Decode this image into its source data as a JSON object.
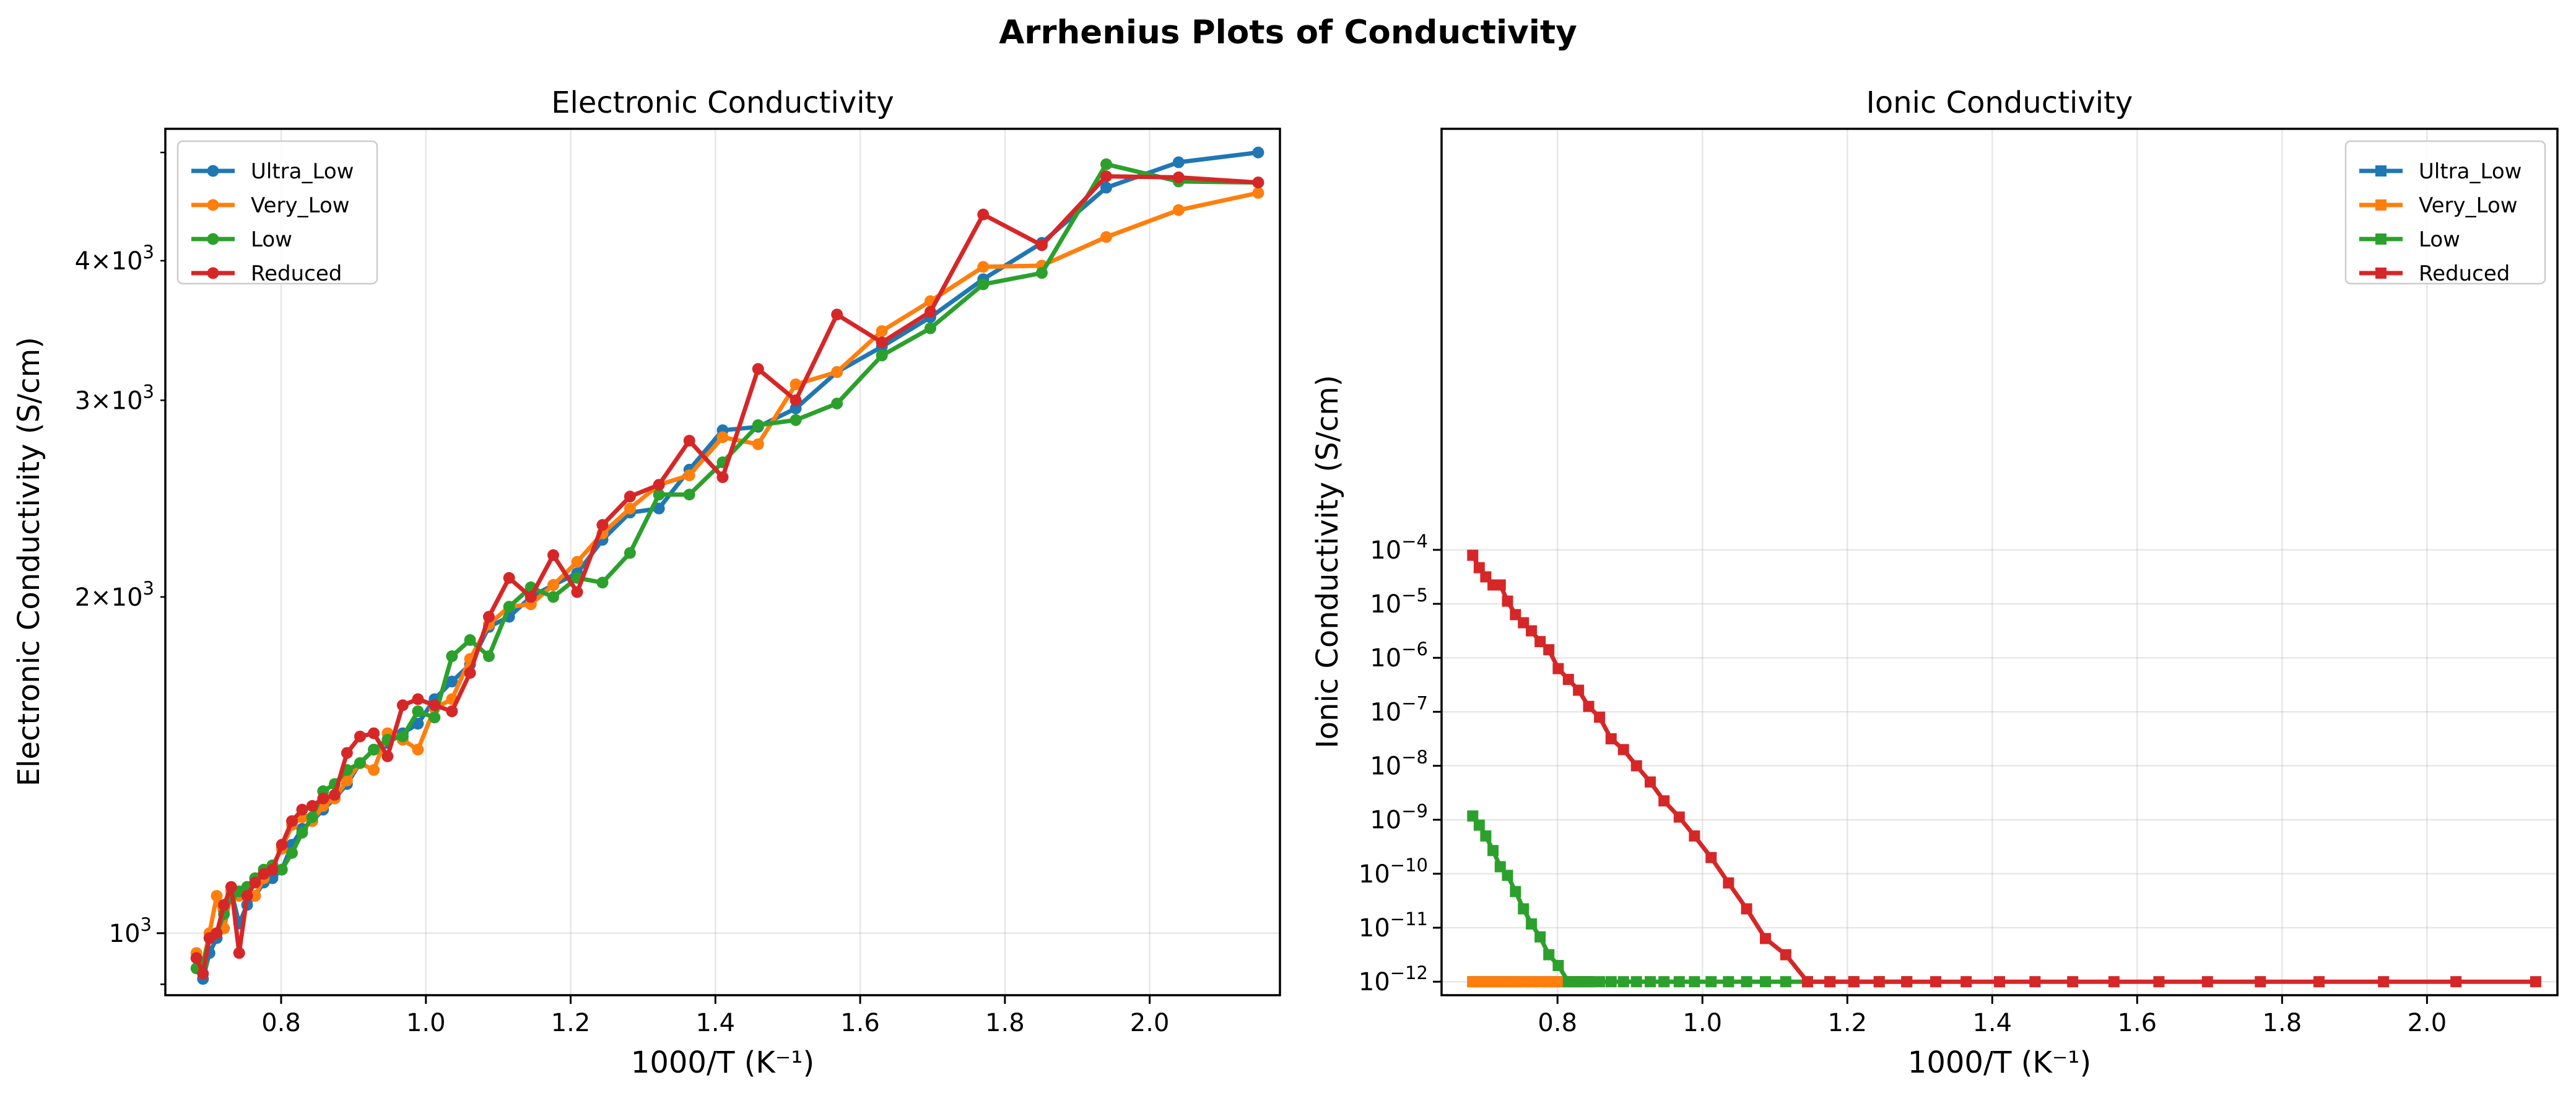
{
  "suptitle": "Arrhenius Plots of Conductivity",
  "colors": {
    "Ultra_Low": "#1f77b4",
    "Very_Low": "#ff7f0e",
    "Low": "#2ca02c",
    "Reduced": "#d62728"
  },
  "chart_data": [
    {
      "type": "line",
      "title": "Electronic Conductivity",
      "xlabel": "1000/T (K⁻¹)",
      "ylabel": "Electronic Conductivity (S/cm)",
      "yscale": "log",
      "xlim": [
        0.64,
        2.18
      ],
      "ylim": [
        880,
        5250
      ],
      "grid": true,
      "legend_loc": "upper left",
      "marker": "circle",
      "xticks": [
        {
          "value": 0.8,
          "label": "0.8"
        },
        {
          "value": 1.0,
          "label": "1.0"
        },
        {
          "value": 1.2,
          "label": "1.2"
        },
        {
          "value": 1.4,
          "label": "1.4"
        },
        {
          "value": 1.6,
          "label": "1.6"
        },
        {
          "value": 1.8,
          "label": "1.8"
        },
        {
          "value": 2.0,
          "label": "2.0"
        }
      ],
      "yticks_major": [
        {
          "value": 1000,
          "base": "10",
          "exp": "3",
          "style": "pow"
        }
      ],
      "yticks_minor_labeled": [
        {
          "value": 2000,
          "mant": "2",
          "base": "10",
          "exp": "3",
          "style": "mant"
        },
        {
          "value": 3000,
          "mant": "3",
          "base": "10",
          "exp": "3",
          "style": "mant"
        },
        {
          "value": 4000,
          "mant": "4",
          "base": "10",
          "exp": "3",
          "style": "mant"
        }
      ],
      "yticks_minor_unlabeled": [
        900,
        5000
      ],
      "series": [
        {
          "name": "Ultra_Low",
          "x": [
            0.683,
            0.692,
            0.701,
            0.711,
            0.721,
            0.731,
            0.742,
            0.753,
            0.764,
            0.776,
            0.788,
            0.801,
            0.815,
            0.829,
            0.843,
            0.858,
            0.874,
            0.891,
            0.909,
            0.928,
            0.947,
            0.968,
            0.989,
            1.012,
            1.036,
            1.061,
            1.087,
            1.115,
            1.145,
            1.176,
            1.209,
            1.244,
            1.282,
            1.322,
            1.364,
            1.41,
            1.459,
            1.511,
            1.568,
            1.63,
            1.697,
            1.77,
            1.851,
            1.94,
            2.04,
            2.15
          ],
          "values": [
            950,
            910,
            960,
            990,
            1010,
            1090,
            1020,
            1060,
            1080,
            1110,
            1120,
            1140,
            1200,
            1240,
            1260,
            1290,
            1320,
            1360,
            1420,
            1460,
            1480,
            1510,
            1540,
            1620,
            1680,
            1740,
            1880,
            1920,
            2000,
            2050,
            2100,
            2250,
            2380,
            2400,
            2600,
            2820,
            2840,
            2950,
            3180,
            3350,
            3560,
            3850,
            4150,
            4650,
            4900,
            5000
          ]
        },
        {
          "name": "Very_Low",
          "x": [
            0.683,
            0.692,
            0.701,
            0.711,
            0.721,
            0.731,
            0.742,
            0.753,
            0.764,
            0.776,
            0.788,
            0.801,
            0.815,
            0.829,
            0.843,
            0.858,
            0.874,
            0.891,
            0.909,
            0.928,
            0.947,
            0.968,
            0.989,
            1.012,
            1.036,
            1.061,
            1.087,
            1.115,
            1.145,
            1.176,
            1.209,
            1.244,
            1.282,
            1.322,
            1.364,
            1.41,
            1.459,
            1.511,
            1.568,
            1.63,
            1.697,
            1.77,
            1.851,
            1.94,
            2.04,
            2.15
          ],
          "values": [
            960,
            940,
            1000,
            1080,
            1010,
            1090,
            1080,
            1100,
            1080,
            1120,
            1150,
            1190,
            1250,
            1270,
            1260,
            1300,
            1320,
            1370,
            1420,
            1400,
            1510,
            1490,
            1460,
            1590,
            1620,
            1760,
            1890,
            1960,
            1970,
            2050,
            2150,
            2280,
            2400,
            2520,
            2570,
            2780,
            2740,
            3100,
            3180,
            3460,
            3680,
            3950,
            3960,
            4200,
            4440,
            4600
          ]
        },
        {
          "name": "Low",
          "x": [
            0.683,
            0.692,
            0.701,
            0.711,
            0.721,
            0.731,
            0.742,
            0.753,
            0.764,
            0.776,
            0.788,
            0.801,
            0.815,
            0.829,
            0.843,
            0.858,
            0.874,
            0.891,
            0.909,
            0.928,
            0.947,
            0.968,
            0.989,
            1.012,
            1.036,
            1.061,
            1.087,
            1.115,
            1.145,
            1.176,
            1.209,
            1.244,
            1.282,
            1.322,
            1.364,
            1.41,
            1.459,
            1.511,
            1.568,
            1.63,
            1.697,
            1.77,
            1.851,
            1.94,
            2.04,
            2.15
          ],
          "values": [
            930,
            940,
            990,
            1000,
            1040,
            1080,
            1090,
            1100,
            1120,
            1140,
            1150,
            1140,
            1180,
            1230,
            1270,
            1340,
            1360,
            1400,
            1420,
            1460,
            1490,
            1500,
            1580,
            1560,
            1770,
            1830,
            1770,
            1960,
            2040,
            2000,
            2080,
            2060,
            2190,
            2470,
            2470,
            2640,
            2850,
            2880,
            2980,
            3290,
            3480,
            3810,
            3900,
            4880,
            4710,
            4700
          ]
        },
        {
          "name": "Reduced",
          "x": [
            0.683,
            0.692,
            0.701,
            0.711,
            0.721,
            0.731,
            0.742,
            0.753,
            0.764,
            0.776,
            0.788,
            0.801,
            0.815,
            0.829,
            0.843,
            0.858,
            0.874,
            0.891,
            0.909,
            0.928,
            0.947,
            0.968,
            0.989,
            1.012,
            1.036,
            1.061,
            1.087,
            1.115,
            1.145,
            1.176,
            1.209,
            1.244,
            1.282,
            1.322,
            1.364,
            1.41,
            1.459,
            1.511,
            1.568,
            1.63,
            1.697,
            1.77,
            1.851,
            1.94,
            2.04,
            2.15
          ],
          "values": [
            950,
            920,
            990,
            1000,
            1060,
            1100,
            960,
            1080,
            1110,
            1130,
            1140,
            1200,
            1260,
            1290,
            1300,
            1320,
            1330,
            1450,
            1500,
            1510,
            1440,
            1600,
            1620,
            1600,
            1580,
            1710,
            1920,
            2080,
            2000,
            2180,
            2020,
            2320,
            2460,
            2520,
            2760,
            2560,
            3200,
            3000,
            3580,
            3380,
            3600,
            4400,
            4130,
            4760,
            4750,
            4700
          ]
        }
      ]
    },
    {
      "type": "line",
      "title": "Ionic Conductivity",
      "xlabel": "1000/T (K⁻¹)",
      "ylabel": "Ionic Conductivity (S/cm)",
      "yscale": "log",
      "xlim": [
        0.64,
        2.18
      ],
      "ylim_log10": [
        -12.25,
        3.8
      ],
      "grid": true,
      "legend_loc": "upper right",
      "marker": "square",
      "xticks": [
        {
          "value": 0.8,
          "label": "0.8"
        },
        {
          "value": 1.0,
          "label": "1.0"
        },
        {
          "value": 1.2,
          "label": "1.2"
        },
        {
          "value": 1.4,
          "label": "1.4"
        },
        {
          "value": 1.6,
          "label": "1.6"
        },
        {
          "value": 1.8,
          "label": "1.8"
        },
        {
          "value": 2.0,
          "label": "2.0"
        }
      ],
      "yticks": [
        {
          "log10": -12,
          "base": "10",
          "exp": "−12"
        },
        {
          "log10": -11,
          "base": "10",
          "exp": "−11"
        },
        {
          "log10": -10,
          "base": "10",
          "exp": "−10"
        },
        {
          "log10": -9,
          "base": "10",
          "exp": "−9"
        },
        {
          "log10": -8,
          "base": "10",
          "exp": "−8"
        },
        {
          "log10": -7,
          "base": "10",
          "exp": "−7"
        },
        {
          "log10": -6,
          "base": "10",
          "exp": "−6"
        },
        {
          "log10": -5,
          "base": "10",
          "exp": "−5"
        },
        {
          "log10": -4,
          "base": "10",
          "exp": "−4"
        }
      ],
      "series": [
        {
          "name": "Ultra_Low",
          "x": [
            0.683,
            0.692,
            0.701,
            0.711,
            0.721,
            0.731,
            0.742,
            0.753,
            0.764,
            0.776,
            0.788,
            0.801,
            0.815,
            0.829,
            0.843
          ],
          "log10_values": [
            -12,
            -12,
            -12,
            -12,
            -12,
            -12,
            -12,
            -12,
            -12,
            -12,
            -12,
            -12,
            -12,
            -12,
            -12
          ]
        },
        {
          "name": "Very_Low",
          "x": [
            0.683,
            0.692,
            0.701,
            0.711,
            0.721,
            0.731,
            0.742,
            0.753,
            0.764,
            0.776,
            0.788,
            0.801,
            0.815,
            0.829,
            0.843
          ],
          "log10_values": [
            -12,
            -12,
            -12,
            -12,
            -12,
            -12,
            -12,
            -12,
            -12,
            -12,
            -12,
            -12,
            -12,
            -12,
            -12
          ]
        },
        {
          "name": "Low",
          "x": [
            0.683,
            0.692,
            0.701,
            0.711,
            0.721,
            0.731,
            0.742,
            0.753,
            0.764,
            0.776,
            0.788,
            0.801,
            0.815,
            0.829,
            0.843,
            0.858,
            0.874,
            0.891,
            0.909,
            0.928,
            0.947,
            0.968,
            0.989,
            1.012,
            1.036,
            1.061,
            1.087,
            1.115,
            1.145,
            1.176,
            1.209,
            1.244,
            1.282
          ],
          "log10_values": [
            -8.93,
            -9.1,
            -9.3,
            -9.57,
            -9.87,
            -10.03,
            -10.33,
            -10.65,
            -10.93,
            -11.17,
            -11.5,
            -11.7,
            -12,
            -12,
            -12,
            -12,
            -12,
            -12,
            -12,
            -12,
            -12,
            -12,
            -12,
            -12,
            -12,
            -12,
            -12,
            -12,
            -12,
            -12,
            -12,
            -12,
            -12
          ]
        },
        {
          "name": "Reduced",
          "x": [
            0.683,
            0.692,
            0.701,
            0.711,
            0.721,
            0.731,
            0.742,
            0.753,
            0.764,
            0.776,
            0.788,
            0.801,
            0.815,
            0.829,
            0.843,
            0.858,
            0.874,
            0.891,
            0.909,
            0.928,
            0.947,
            0.968,
            0.989,
            1.012,
            1.036,
            1.061,
            1.087,
            1.115,
            1.145,
            1.176,
            1.209,
            1.244,
            1.282,
            1.322,
            1.364,
            1.41,
            1.459,
            1.511,
            1.568,
            1.63,
            1.697,
            1.77,
            1.851,
            1.94,
            2.04,
            2.15
          ],
          "log10_values": [
            -4.1,
            -4.33,
            -4.5,
            -4.65,
            -4.65,
            -4.95,
            -5.2,
            -5.35,
            -5.5,
            -5.7,
            -5.85,
            -6.2,
            -6.4,
            -6.6,
            -6.9,
            -7.1,
            -7.5,
            -7.7,
            -8.0,
            -8.3,
            -8.65,
            -8.95,
            -9.3,
            -9.7,
            -10.17,
            -10.65,
            -11.2,
            -11.5,
            -12,
            -12,
            -12,
            -12,
            -12,
            -12,
            -12,
            -12,
            -12,
            -12,
            -12,
            -12,
            -12,
            -12,
            -12,
            -12,
            -12,
            -12
          ]
        }
      ]
    }
  ]
}
